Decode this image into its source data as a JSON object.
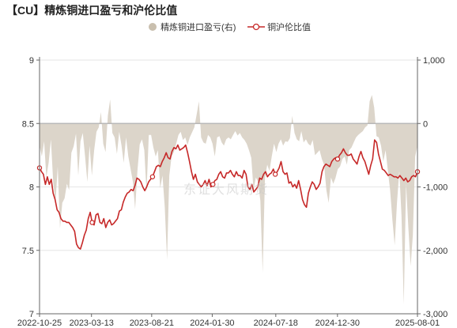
{
  "title": "【CU】精炼铜进口盈亏和沪伦比值",
  "watermark": "东证大风期货",
  "colors": {
    "area": "#d8d0c4",
    "line": "#c62828",
    "axis": "#666666",
    "grid": "#e6e6e6",
    "refline": "#b8b8b8"
  },
  "chart_data": {
    "type": "line",
    "title": "【CU】精炼铜进口盈亏和沪伦比值",
    "x_ticks": [
      "2022-10-25",
      "2023-03-13",
      "2023-08-21",
      "2024-01-30",
      "2024-07-18",
      "2024-12-30",
      "2025-08-01"
    ],
    "x_range": [
      "2022-10-25",
      "2025-08-01"
    ],
    "left_axis": {
      "ticks": [
        "7",
        "7.5",
        "8",
        "8.5",
        "9"
      ],
      "range": [
        7,
        9
      ]
    },
    "right_axis": {
      "ticks": [
        "-3,000",
        "-2,000",
        "-1,000",
        "0",
        "1,000"
      ],
      "range": [
        -3000,
        1000
      ]
    },
    "grid": true,
    "legend_position": "top-center",
    "series": [
      {
        "name": "精炼铜进口盈亏(右)",
        "type": "area",
        "axis": "right",
        "color": "#d8d0c4",
        "values": [
          -350,
          -520,
          -280,
          -850,
          -620,
          -250,
          -930,
          -1250,
          -680,
          -1650,
          -1250,
          -1180,
          -950,
          -1050,
          -460,
          -360,
          -160,
          -820,
          -280,
          -150,
          -520,
          -920,
          -350,
          -820,
          -420,
          -130,
          -60,
          180,
          -320,
          -450,
          120,
          380,
          -150,
          -220,
          -480,
          -130,
          -350,
          -620,
          -220,
          -520,
          -720,
          -920,
          -1350,
          -750,
          -330,
          -250,
          -420,
          -1080,
          -180,
          -180,
          -380,
          -520,
          -420,
          -1020,
          -820,
          -1320,
          -2150,
          -820,
          -520,
          -450,
          -320,
          -180,
          -130,
          -260,
          -220,
          -340,
          -220,
          -140,
          -60,
          140,
          350,
          -220,
          -300,
          -320,
          -180,
          -220,
          -320,
          -520,
          -220,
          -200,
          -300,
          -350,
          -250,
          -220,
          -250,
          -180,
          -120,
          -190,
          -150,
          -220,
          -260,
          -320,
          -420,
          -540,
          -1050,
          -850,
          -920,
          -1220,
          -2350,
          -860,
          -650,
          -750,
          -520,
          -320,
          -450,
          -320,
          -250,
          -350,
          -280,
          -290,
          -230,
          120,
          -150,
          -250,
          -280,
          -120,
          -300,
          -250,
          -320,
          -350,
          -260,
          -500,
          -460,
          -420,
          -560,
          -650,
          -1050,
          -1250,
          -850,
          -950,
          -860,
          -720,
          -680,
          -560,
          -520,
          -650,
          -420,
          -380,
          -300,
          -220,
          -180,
          -150,
          -120,
          -60,
          -30,
          350,
          450,
          250,
          -200,
          -220,
          -350,
          -600,
          -420,
          -750,
          -1050,
          -1520,
          -1920,
          -1250,
          -750,
          -1450,
          -2850,
          -950,
          -1650,
          -2250,
          -1750,
          -520,
          -350
        ]
      },
      {
        "name": "铜沪伦比值",
        "type": "line",
        "axis": "left",
        "color": "#c62828",
        "values": [
          8.15,
          8.12,
          8.1,
          8.02,
          8.08,
          8.02,
          8.06,
          7.95,
          7.9,
          7.82,
          7.8,
          7.75,
          7.73,
          7.73,
          7.72,
          7.72,
          7.7,
          7.68,
          7.65,
          7.55,
          7.52,
          7.51,
          7.56,
          7.62,
          7.66,
          7.75,
          7.8,
          7.72,
          7.7,
          7.78,
          7.79,
          7.72,
          7.71,
          7.75,
          7.68,
          7.72,
          7.74,
          7.7,
          7.71,
          7.73,
          7.75,
          7.81,
          7.82,
          7.88,
          7.92,
          7.95,
          7.96,
          7.98,
          7.97,
          8.01,
          8.07,
          8.06,
          8.04,
          8.0,
          7.97,
          8.0,
          8.04,
          8.06,
          8.08,
          8.12,
          8.16,
          8.17,
          8.16,
          8.2,
          8.23,
          8.27,
          8.23,
          8.22,
          8.28,
          8.31,
          8.3,
          8.33,
          8.29,
          8.3,
          8.31,
          8.33,
          8.27,
          8.2,
          8.12,
          8.06,
          8.1,
          8.04,
          8.02,
          8.0,
          8.02,
          8.05,
          8.01,
          8.06,
          8.0,
          8.02,
          8.05,
          8.06,
          8.1,
          8.12,
          8.08,
          8.07,
          8.11,
          8.11,
          8.13,
          8.1,
          8.08,
          8.12,
          8.09,
          8.09,
          8.07,
          8.13,
          8.1,
          8.0,
          7.98,
          8.02,
          7.96,
          7.98,
          8.0,
          8.07,
          8.06,
          8.1,
          8.12,
          8.08,
          8.1,
          8.11,
          8.14,
          8.1,
          8.12,
          8.15,
          8.2,
          8.12,
          8.1,
          8.11,
          8.03,
          8.04,
          8.0,
          8.02,
          7.99,
          8.05,
          7.98,
          7.9,
          7.86,
          7.84,
          7.95,
          8.0,
          8.04,
          8.02,
          7.98,
          8.0,
          8.03,
          8.12,
          8.16,
          8.18,
          8.17,
          8.16,
          8.2,
          8.22,
          8.23,
          8.22,
          8.25,
          8.27,
          8.3,
          8.27,
          8.25,
          8.25,
          8.26,
          8.22,
          8.2,
          8.18,
          8.24,
          8.28,
          8.23,
          8.2,
          8.15,
          8.1,
          8.17,
          8.22,
          8.37,
          8.35,
          8.26,
          8.2,
          8.14,
          8.13,
          8.11,
          8.09,
          8.1,
          8.09,
          8.08,
          8.08,
          8.07,
          8.09,
          8.07,
          8.05,
          8.07,
          8.04,
          8.05,
          8.08,
          8.09,
          8.08,
          8.12
        ]
      }
    ]
  }
}
